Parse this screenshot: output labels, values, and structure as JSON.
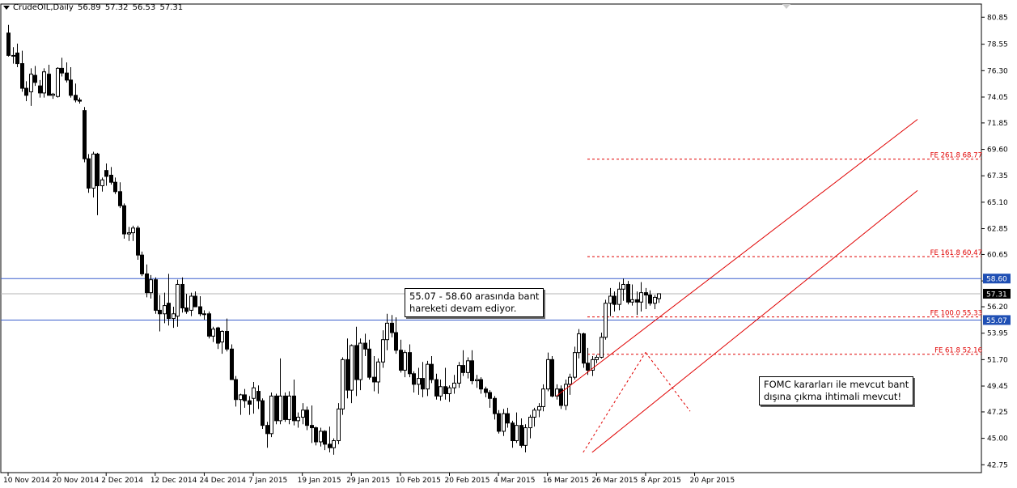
{
  "header": {
    "symbol": "CrudeOIL,Daily",
    "o": "56.89",
    "h": "57.32",
    "l": "56.53",
    "c": "57.31"
  },
  "notes": {
    "band": [
      "55.07 - 58.60 arasında bant",
      "hareketi devam ediyor."
    ],
    "fomc": [
      "FOMC kararları ile mevcut bant",
      "dışına çıkma ihtimali mevcut!"
    ]
  },
  "colors": {
    "bull_candle": "#ffffff",
    "bear_candle": "#000000",
    "horizontal_lines": "#3a5fcd",
    "current_price_line": "#b4b4b4",
    "channel_and_fibonacci": "#e00000",
    "price_tag_blue": "#1f4fb4",
    "price_tag_current": "#000000"
  },
  "chart_data": {
    "type": "candlestick",
    "title": "CrudeOIL,Daily",
    "ylim": [
      42.08,
      81.97
    ],
    "y_ticks": [
      "80.85",
      "78.55",
      "76.30",
      "74.05",
      "71.85",
      "69.60",
      "67.35",
      "65.10",
      "62.85",
      "60.65",
      "58.40",
      "56.20",
      "53.95",
      "51.70",
      "49.45",
      "47.25",
      "45.00",
      "42.75"
    ],
    "x_ticks": [
      {
        "label": "10 Nov 2014",
        "index": 0
      },
      {
        "label": "20 Nov 2014",
        "index": 11
      },
      {
        "label": "2 Dec 2014",
        "index": 22
      },
      {
        "label": "12 Dec 2014",
        "index": 33
      },
      {
        "label": "24 Dec 2014",
        "index": 44
      },
      {
        "label": "7 Jan 2015",
        "index": 55
      },
      {
        "label": "19 Jan 2015",
        "index": 66
      },
      {
        "label": "29 Jan 2015",
        "index": 77
      },
      {
        "label": "10 Feb 2015",
        "index": 88
      },
      {
        "label": "20 Feb 2015",
        "index": 99
      },
      {
        "label": "4 Mar 2015",
        "index": 110
      },
      {
        "label": "16 Mar 2015",
        "index": 121
      },
      {
        "label": "26 Mar 2015",
        "index": 132
      },
      {
        "label": "8 Apr 2015",
        "index": 143
      },
      {
        "label": "20 Apr 2015",
        "index": 154
      }
    ],
    "candles": [
      {
        "o": 79.5,
        "h": 80.2,
        "l": 77.5,
        "c": 77.6
      },
      {
        "o": 77.6,
        "h": 78.3,
        "l": 76.9,
        "c": 77.6
      },
      {
        "o": 77.8,
        "h": 78.6,
        "l": 76.6,
        "c": 76.9
      },
      {
        "o": 76.9,
        "h": 78.0,
        "l": 74.5,
        "c": 74.8
      },
      {
        "o": 74.8,
        "h": 75.4,
        "l": 73.7,
        "c": 74.2
      },
      {
        "o": 74.5,
        "h": 76.5,
        "l": 73.3,
        "c": 76.0
      },
      {
        "o": 75.9,
        "h": 76.7,
        "l": 75.0,
        "c": 75.3
      },
      {
        "o": 75.0,
        "h": 75.5,
        "l": 74.0,
        "c": 74.4
      },
      {
        "o": 74.4,
        "h": 76.5,
        "l": 74.0,
        "c": 76.2
      },
      {
        "o": 76.0,
        "h": 76.8,
        "l": 74.2,
        "c": 74.2
      },
      {
        "o": 74.2,
        "h": 74.4,
        "l": 73.9,
        "c": 74.3
      },
      {
        "o": 74.1,
        "h": 76.6,
        "l": 74.0,
        "c": 76.5
      },
      {
        "o": 76.5,
        "h": 77.4,
        "l": 75.8,
        "c": 76.1
      },
      {
        "o": 76.1,
        "h": 77.0,
        "l": 75.3,
        "c": 75.5
      },
      {
        "o": 75.5,
        "h": 76.6,
        "l": 74.0,
        "c": 74.2
      },
      {
        "o": 74.2,
        "h": 75.2,
        "l": 73.6,
        "c": 73.8
      },
      {
        "o": 73.8,
        "h": 74.0,
        "l": 73.5,
        "c": 73.7
      },
      {
        "o": 72.9,
        "h": 73.2,
        "l": 68.5,
        "c": 68.8
      },
      {
        "o": 68.8,
        "h": 69.2,
        "l": 65.9,
        "c": 66.3
      },
      {
        "o": 66.3,
        "h": 69.4,
        "l": 65.5,
        "c": 69.2
      },
      {
        "o": 69.2,
        "h": 69.3,
        "l": 64.0,
        "c": 66.5
      },
      {
        "o": 66.5,
        "h": 67.2,
        "l": 66.0,
        "c": 67.0
      },
      {
        "o": 67.8,
        "h": 68.4,
        "l": 66.5,
        "c": 67.3
      },
      {
        "o": 67.4,
        "h": 68.1,
        "l": 66.6,
        "c": 66.8
      },
      {
        "o": 66.8,
        "h": 67.2,
        "l": 65.8,
        "c": 66.0
      },
      {
        "o": 66.0,
        "h": 66.8,
        "l": 64.6,
        "c": 64.8
      },
      {
        "o": 64.8,
        "h": 65.0,
        "l": 62.0,
        "c": 62.4
      },
      {
        "o": 62.4,
        "h": 63.0,
        "l": 61.8,
        "c": 62.5
      },
      {
        "o": 62.5,
        "h": 63.1,
        "l": 61.8,
        "c": 62.9
      },
      {
        "o": 62.9,
        "h": 63.1,
        "l": 60.2,
        "c": 60.6
      },
      {
        "o": 60.6,
        "h": 60.9,
        "l": 58.8,
        "c": 59.0
      },
      {
        "o": 59.0,
        "h": 59.8,
        "l": 57.0,
        "c": 57.4
      },
      {
        "o": 57.4,
        "h": 58.9,
        "l": 56.9,
        "c": 58.5
      },
      {
        "o": 58.5,
        "h": 58.7,
        "l": 55.6,
        "c": 55.9
      },
      {
        "o": 55.9,
        "h": 57.2,
        "l": 54.1,
        "c": 55.6
      },
      {
        "o": 55.6,
        "h": 57.4,
        "l": 54.8,
        "c": 56.3
      },
      {
        "o": 56.5,
        "h": 59.0,
        "l": 54.6,
        "c": 55.2
      },
      {
        "o": 55.2,
        "h": 56.2,
        "l": 54.4,
        "c": 55.6
      },
      {
        "o": 55.4,
        "h": 58.5,
        "l": 54.5,
        "c": 58.1
      },
      {
        "o": 58.1,
        "h": 58.7,
        "l": 55.7,
        "c": 56.1
      },
      {
        "o": 56.1,
        "h": 57.3,
        "l": 55.6,
        "c": 55.8
      },
      {
        "o": 55.9,
        "h": 57.4,
        "l": 55.4,
        "c": 57.1
      },
      {
        "o": 57.1,
        "h": 57.5,
        "l": 56.2,
        "c": 56.2
      },
      {
        "o": 56.2,
        "h": 57.1,
        "l": 55.4,
        "c": 55.6
      },
      {
        "o": 55.6,
        "h": 55.9,
        "l": 55.1,
        "c": 55.6
      },
      {
        "o": 55.6,
        "h": 55.8,
        "l": 53.5,
        "c": 53.7
      },
      {
        "o": 53.7,
        "h": 54.5,
        "l": 53.2,
        "c": 54.3
      },
      {
        "o": 54.4,
        "h": 54.5,
        "l": 52.6,
        "c": 53.1
      },
      {
        "o": 53.2,
        "h": 54.2,
        "l": 52.2,
        "c": 54.1
      },
      {
        "o": 54.1,
        "h": 55.2,
        "l": 52.4,
        "c": 52.6
      },
      {
        "o": 52.6,
        "h": 53.0,
        "l": 50.0,
        "c": 50.0
      },
      {
        "o": 50.0,
        "h": 50.3,
        "l": 47.7,
        "c": 48.3
      },
      {
        "o": 48.3,
        "h": 48.8,
        "l": 47.0,
        "c": 48.7
      },
      {
        "o": 48.7,
        "h": 49.2,
        "l": 47.6,
        "c": 48.2
      },
      {
        "o": 48.2,
        "h": 48.6,
        "l": 47.0,
        "c": 47.9
      },
      {
        "o": 48.4,
        "h": 49.8,
        "l": 47.1,
        "c": 49.3
      },
      {
        "o": 49.0,
        "h": 49.5,
        "l": 47.5,
        "c": 48.2
      },
      {
        "o": 48.2,
        "h": 48.4,
        "l": 45.8,
        "c": 46.1
      },
      {
        "o": 46.1,
        "h": 46.4,
        "l": 44.2,
        "c": 45.4
      },
      {
        "o": 45.4,
        "h": 48.9,
        "l": 45.1,
        "c": 48.6
      },
      {
        "o": 48.6,
        "h": 48.8,
        "l": 46.2,
        "c": 46.5
      },
      {
        "o": 46.5,
        "h": 51.8,
        "l": 46.2,
        "c": 48.6
      },
      {
        "o": 48.6,
        "h": 48.9,
        "l": 46.4,
        "c": 46.6
      },
      {
        "o": 46.6,
        "h": 49.0,
        "l": 46.2,
        "c": 48.6
      },
      {
        "o": 48.6,
        "h": 50.0,
        "l": 46.1,
        "c": 46.5
      },
      {
        "o": 46.5,
        "h": 47.2,
        "l": 45.9,
        "c": 46.8
      },
      {
        "o": 46.8,
        "h": 48.0,
        "l": 46.2,
        "c": 47.4
      },
      {
        "o": 47.4,
        "h": 47.7,
        "l": 45.7,
        "c": 46.1
      },
      {
        "o": 46.1,
        "h": 47.8,
        "l": 44.6,
        "c": 45.9
      },
      {
        "o": 45.9,
        "h": 46.0,
        "l": 44.4,
        "c": 44.7
      },
      {
        "o": 44.7,
        "h": 45.9,
        "l": 44.3,
        "c": 45.6
      },
      {
        "o": 45.6,
        "h": 45.7,
        "l": 44.0,
        "c": 44.5
      },
      {
        "o": 44.5,
        "h": 46.0,
        "l": 43.8,
        "c": 44.2
      },
      {
        "o": 44.2,
        "h": 45.0,
        "l": 43.6,
        "c": 44.8
      },
      {
        "o": 44.8,
        "h": 48.0,
        "l": 44.5,
        "c": 47.5
      },
      {
        "o": 47.5,
        "h": 51.9,
        "l": 47.0,
        "c": 51.7
      },
      {
        "o": 51.7,
        "h": 53.5,
        "l": 48.4,
        "c": 49.1
      },
      {
        "o": 49.1,
        "h": 53.0,
        "l": 48.0,
        "c": 52.9
      },
      {
        "o": 52.9,
        "h": 54.5,
        "l": 48.6,
        "c": 50.0
      },
      {
        "o": 50.0,
        "h": 53.5,
        "l": 49.1,
        "c": 53.1
      },
      {
        "o": 53.1,
        "h": 53.9,
        "l": 52.0,
        "c": 52.6
      },
      {
        "o": 52.6,
        "h": 53.4,
        "l": 50.0,
        "c": 50.2
      },
      {
        "o": 50.2,
        "h": 52.0,
        "l": 49.0,
        "c": 49.8
      },
      {
        "o": 49.8,
        "h": 51.8,
        "l": 48.8,
        "c": 51.5
      },
      {
        "o": 51.5,
        "h": 54.2,
        "l": 51.0,
        "c": 53.4
      },
      {
        "o": 53.4,
        "h": 55.6,
        "l": 52.5,
        "c": 54.8
      },
      {
        "o": 54.8,
        "h": 55.5,
        "l": 53.6,
        "c": 54.0
      },
      {
        "o": 54.0,
        "h": 55.3,
        "l": 52.2,
        "c": 52.5
      },
      {
        "o": 52.5,
        "h": 53.4,
        "l": 50.6,
        "c": 50.8
      },
      {
        "o": 50.8,
        "h": 52.5,
        "l": 50.2,
        "c": 52.3
      },
      {
        "o": 52.3,
        "h": 53.0,
        "l": 50.2,
        "c": 50.5
      },
      {
        "o": 50.5,
        "h": 50.7,
        "l": 48.9,
        "c": 49.6
      },
      {
        "o": 49.6,
        "h": 51.0,
        "l": 48.7,
        "c": 50.1
      },
      {
        "o": 50.1,
        "h": 51.5,
        "l": 48.5,
        "c": 49.2
      },
      {
        "o": 49.2,
        "h": 51.6,
        "l": 48.6,
        "c": 51.3
      },
      {
        "o": 51.3,
        "h": 52.0,
        "l": 49.7,
        "c": 50.0
      },
      {
        "o": 50.0,
        "h": 50.5,
        "l": 48.3,
        "c": 48.6
      },
      {
        "o": 48.6,
        "h": 50.0,
        "l": 48.2,
        "c": 49.4
      },
      {
        "o": 49.4,
        "h": 51.0,
        "l": 48.3,
        "c": 48.8
      },
      {
        "o": 48.8,
        "h": 49.5,
        "l": 48.1,
        "c": 49.3
      },
      {
        "o": 49.3,
        "h": 50.4,
        "l": 48.8,
        "c": 49.7
      },
      {
        "o": 49.7,
        "h": 51.5,
        "l": 49.3,
        "c": 51.2
      },
      {
        "o": 51.2,
        "h": 52.5,
        "l": 50.3,
        "c": 50.6
      },
      {
        "o": 50.6,
        "h": 51.9,
        "l": 50.1,
        "c": 51.6
      },
      {
        "o": 51.6,
        "h": 52.5,
        "l": 49.6,
        "c": 49.9
      },
      {
        "o": 49.9,
        "h": 50.4,
        "l": 49.3,
        "c": 50.0
      },
      {
        "o": 50.0,
        "h": 50.2,
        "l": 48.8,
        "c": 49.2
      },
      {
        "o": 49.2,
        "h": 49.4,
        "l": 48.5,
        "c": 48.9
      },
      {
        "o": 48.9,
        "h": 49.1,
        "l": 47.6,
        "c": 48.4
      },
      {
        "o": 48.4,
        "h": 48.6,
        "l": 46.6,
        "c": 47.1
      },
      {
        "o": 47.1,
        "h": 47.4,
        "l": 45.4,
        "c": 45.6
      },
      {
        "o": 45.6,
        "h": 47.5,
        "l": 45.2,
        "c": 47.1
      },
      {
        "o": 47.1,
        "h": 47.6,
        "l": 45.9,
        "c": 46.3
      },
      {
        "o": 46.3,
        "h": 46.5,
        "l": 44.2,
        "c": 44.8
      },
      {
        "o": 44.8,
        "h": 47.2,
        "l": 44.6,
        "c": 46.1
      },
      {
        "o": 46.1,
        "h": 46.7,
        "l": 44.2,
        "c": 44.4
      },
      {
        "o": 44.4,
        "h": 46.2,
        "l": 43.8,
        "c": 45.9
      },
      {
        "o": 45.9,
        "h": 47.0,
        "l": 45.0,
        "c": 46.8
      },
      {
        "o": 46.8,
        "h": 47.6,
        "l": 46.0,
        "c": 47.4
      },
      {
        "o": 47.4,
        "h": 48.0,
        "l": 46.8,
        "c": 47.7
      },
      {
        "o": 47.7,
        "h": 49.6,
        "l": 47.3,
        "c": 49.2
      },
      {
        "o": 49.2,
        "h": 52.3,
        "l": 49.0,
        "c": 51.7
      },
      {
        "o": 51.7,
        "h": 52.0,
        "l": 48.5,
        "c": 48.6
      },
      {
        "o": 48.6,
        "h": 49.6,
        "l": 48.3,
        "c": 49.2
      },
      {
        "o": 49.2,
        "h": 49.5,
        "l": 47.5,
        "c": 47.8
      },
      {
        "o": 47.8,
        "h": 50.0,
        "l": 47.4,
        "c": 49.6
      },
      {
        "o": 49.6,
        "h": 50.5,
        "l": 48.7,
        "c": 50.2
      },
      {
        "o": 50.2,
        "h": 52.8,
        "l": 50.0,
        "c": 52.3
      },
      {
        "o": 52.3,
        "h": 54.3,
        "l": 51.8,
        "c": 53.9
      },
      {
        "o": 53.9,
        "h": 54.0,
        "l": 51.0,
        "c": 51.4
      },
      {
        "o": 51.4,
        "h": 52.7,
        "l": 50.4,
        "c": 50.8
      },
      {
        "o": 50.8,
        "h": 52.0,
        "l": 50.3,
        "c": 51.7
      },
      {
        "o": 51.7,
        "h": 52.1,
        "l": 51.4,
        "c": 51.9
      },
      {
        "o": 51.9,
        "h": 54.0,
        "l": 51.8,
        "c": 53.6
      },
      {
        "o": 53.6,
        "h": 56.8,
        "l": 53.4,
        "c": 56.5
      },
      {
        "o": 56.5,
        "h": 57.8,
        "l": 55.4,
        "c": 57.1
      },
      {
        "o": 57.1,
        "h": 57.5,
        "l": 55.8,
        "c": 56.4
      },
      {
        "o": 56.4,
        "h": 58.3,
        "l": 55.9,
        "c": 57.7
      },
      {
        "o": 57.7,
        "h": 58.6,
        "l": 56.7,
        "c": 58.1
      },
      {
        "o": 58.1,
        "h": 58.4,
        "l": 56.4,
        "c": 56.6
      },
      {
        "o": 56.6,
        "h": 58.1,
        "l": 56.3,
        "c": 56.8
      },
      {
        "o": 56.8,
        "h": 57.5,
        "l": 55.5,
        "c": 56.6
      },
      {
        "o": 56.6,
        "h": 58.3,
        "l": 55.8,
        "c": 57.4
      },
      {
        "o": 57.4,
        "h": 57.8,
        "l": 56.0,
        "c": 57.2
      },
      {
        "o": 57.2,
        "h": 57.6,
        "l": 56.3,
        "c": 56.5
      },
      {
        "o": 56.5,
        "h": 57.2,
        "l": 56.0,
        "c": 57.0
      },
      {
        "o": 56.89,
        "h": 57.32,
        "l": 56.53,
        "c": 57.31
      }
    ],
    "horizontal_levels": [
      58.6,
      55.07
    ],
    "current_price": 57.31,
    "fibonacci_expansion": [
      {
        "label": "FE 261.8 68.77",
        "value": 68.77
      },
      {
        "label": "FE 161.8 60.47",
        "value": 60.47
      },
      {
        "label": "FE 100.0 55.33",
        "value": 55.33
      },
      {
        "label": "FE 61.8 52.16",
        "value": 52.16
      }
    ],
    "price_tags": {
      "band_high": "58.60",
      "current": "57.31",
      "band_low": "55.07"
    },
    "channel": {
      "upper": [
        {
          "index": 123,
          "value": 48.6
        },
        {
          "index": 204,
          "value": 72.15
        }
      ],
      "lower": [
        {
          "index": 131,
          "value": 43.8
        },
        {
          "index": 204,
          "value": 66.1
        }
      ]
    },
    "fe_pattern": [
      {
        "index": 129,
        "value": 43.8
      },
      {
        "index": 143,
        "value": 52.32
      },
      {
        "index": 153,
        "value": 47.3
      }
    ]
  }
}
